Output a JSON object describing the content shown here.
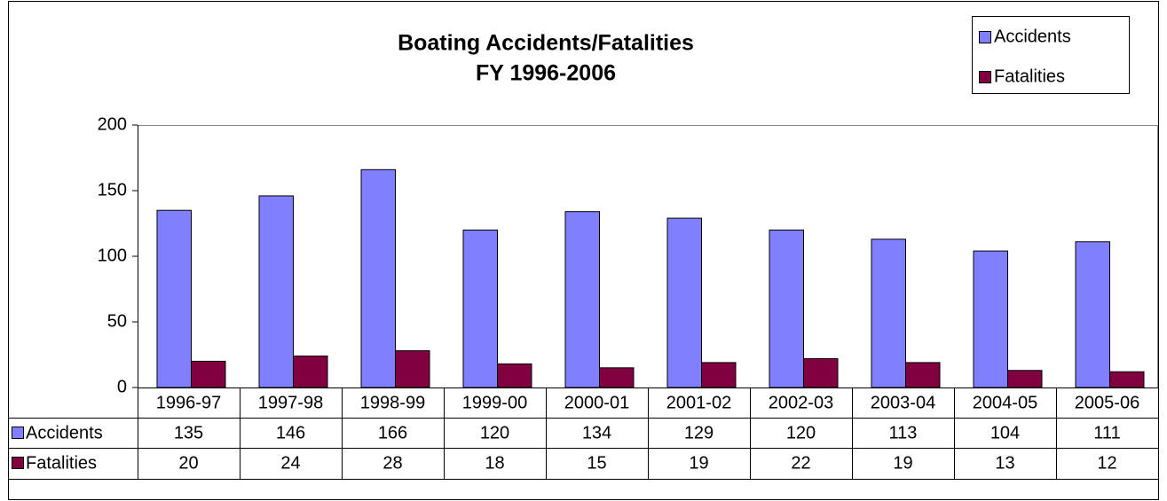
{
  "chart_data": {
    "type": "bar",
    "title": "Boating Accidents/Fatalities",
    "subtitle": "FY 1996-2006",
    "categories": [
      "1996-97",
      "1997-98",
      "1998-99",
      "1999-00",
      "2000-01",
      "2001-02",
      "2002-03",
      "2003-04",
      "2004-05",
      "2005-06"
    ],
    "series": [
      {
        "name": "Accidents",
        "color": "#8080ff",
        "values": [
          135,
          146,
          166,
          120,
          134,
          129,
          120,
          113,
          104,
          111
        ]
      },
      {
        "name": "Fatalities",
        "color": "#800040",
        "values": [
          20,
          24,
          28,
          18,
          15,
          19,
          22,
          19,
          13,
          12
        ]
      }
    ],
    "ylim": [
      0,
      200
    ],
    "yticks": [
      0,
      50,
      100,
      150,
      200
    ],
    "legend": "top-right",
    "grid": false
  }
}
